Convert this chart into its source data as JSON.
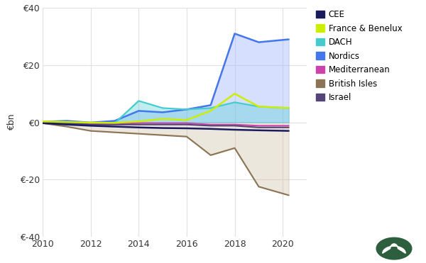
{
  "years": [
    2010,
    2011,
    2012,
    2013,
    2014,
    2015,
    2016,
    2017,
    2018,
    2019,
    2020.25
  ],
  "series": {
    "CEE": {
      "values": [
        -0.3,
        -0.8,
        -1.2,
        -1.5,
        -1.8,
        -2.0,
        -2.1,
        -2.3,
        -2.6,
        -2.8,
        -3.0
      ],
      "color": "#1a1a5e",
      "linewidth": 1.8,
      "fill": false,
      "zorder": 7
    },
    "France & Benelux": {
      "values": [
        0.3,
        0.1,
        -0.1,
        -0.2,
        0.3,
        1.2,
        0.8,
        4.0,
        10.0,
        5.5,
        5.0
      ],
      "color": "#ccee00",
      "linewidth": 1.8,
      "fill": false,
      "zorder": 8
    },
    "DACH": {
      "values": [
        0.0,
        -0.3,
        -0.8,
        -0.3,
        7.5,
        5.0,
        4.5,
        5.0,
        7.0,
        5.5,
        5.0
      ],
      "color": "#44cccc",
      "linewidth": 1.5,
      "fill": true,
      "fill_color": "#44cccc55",
      "zorder": 5
    },
    "Nordics": {
      "values": [
        0.2,
        0.5,
        -0.1,
        0.5,
        4.0,
        3.5,
        4.5,
        6.0,
        31.0,
        28.0,
        29.0
      ],
      "color": "#4477ee",
      "linewidth": 1.8,
      "fill": true,
      "fill_color": "#aabbff77",
      "zorder": 4
    },
    "Mediterranean": {
      "values": [
        0.0,
        -0.2,
        -0.3,
        -0.5,
        -0.3,
        -0.3,
        -0.3,
        -0.8,
        -0.8,
        -1.2,
        -1.2
      ],
      "color": "#cc44aa",
      "linewidth": 1.5,
      "fill": false,
      "zorder": 6
    },
    "British Isles": {
      "values": [
        -0.3,
        -1.5,
        -3.0,
        -3.5,
        -4.0,
        -4.5,
        -5.0,
        -11.5,
        -9.0,
        -22.5,
        -25.5
      ],
      "color": "#8b7355",
      "linewidth": 1.5,
      "fill": true,
      "fill_color": "#c8b89a55",
      "zorder": 2
    },
    "Israel": {
      "values": [
        0.0,
        -0.3,
        -0.8,
        -0.8,
        -0.8,
        -0.8,
        -0.8,
        -1.2,
        -1.2,
        -1.8,
        -1.8
      ],
      "color": "#554477",
      "linewidth": 1.5,
      "fill": false,
      "zorder": 6
    }
  },
  "xlim": [
    2010,
    2021.0
  ],
  "ylim": [
    -40,
    40
  ],
  "yticks": [
    -40,
    -20,
    0,
    20,
    40
  ],
  "ytick_labels": [
    "€-40",
    "€-20",
    "€0",
    "€20",
    "€40"
  ],
  "xticks": [
    2010,
    2012,
    2014,
    2016,
    2018,
    2020
  ],
  "ylabel": "€bn",
  "grid_color": "#e0e0e0",
  "bg_color": "#ffffff",
  "legend_order": [
    "CEE",
    "France & Benelux",
    "DACH",
    "Nordics",
    "Mediterranean",
    "British Isles",
    "Israel"
  ],
  "legend_colors": {
    "CEE": "#1a1a5e",
    "France & Benelux": "#ccee00",
    "DACH": "#44cccc",
    "Nordics": "#4477ee",
    "Mediterranean": "#cc44aa",
    "British Isles": "#8b7355",
    "Israel": "#554477"
  }
}
